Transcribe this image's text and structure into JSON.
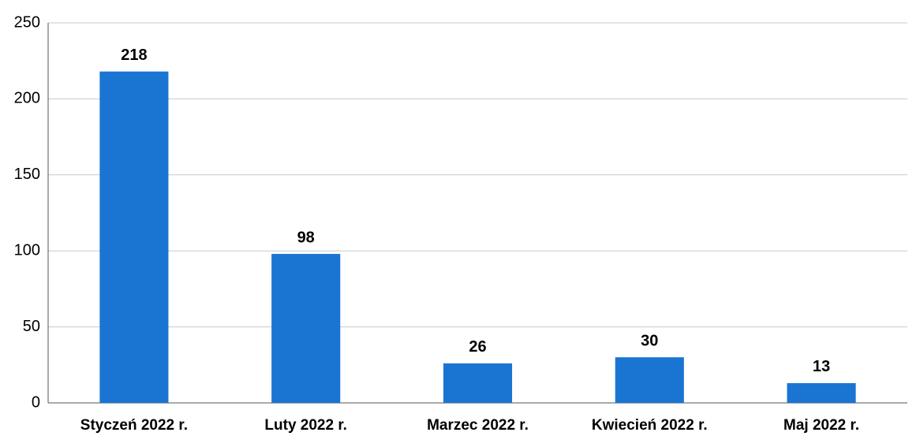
{
  "chart_data": {
    "type": "bar",
    "categories": [
      "Styczeń 2022 r.",
      "Luty 2022 r.",
      "Marzec 2022 r.",
      "Kwiecień 2022 r.",
      "Maj 2022 r."
    ],
    "values": [
      218,
      98,
      26,
      30,
      13
    ],
    "color": "#1a75d2",
    "ylim": [
      0,
      250
    ],
    "yticks": [
      0,
      50,
      100,
      150,
      200,
      250
    ],
    "grid": true
  }
}
